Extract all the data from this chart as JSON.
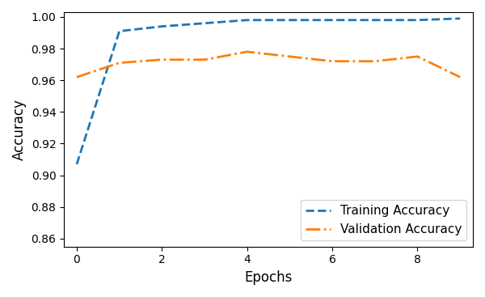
{
  "epochs": [
    0,
    1,
    2,
    3,
    4,
    5,
    6,
    7,
    8,
    9
  ],
  "train_acc": [
    0.907,
    0.991,
    0.994,
    0.996,
    0.998,
    0.998,
    0.998,
    0.998,
    0.998,
    0.999
  ],
  "val_acc": [
    0.962,
    0.971,
    0.973,
    0.973,
    0.978,
    0.975,
    0.972,
    0.972,
    0.975,
    0.962
  ],
  "train_color": "#1f77b4",
  "val_color": "#ff7f0e",
  "train_label": "Training Accuracy",
  "val_label": "Validation Accuracy",
  "xlabel": "Epochs",
  "ylabel": "Accuracy",
  "ylim": [
    0.855,
    1.003
  ],
  "xlim": [
    -0.3,
    9.3
  ],
  "yticks": [
    0.86,
    0.88,
    0.9,
    0.92,
    0.94,
    0.96,
    0.98,
    1.0
  ],
  "xticks": [
    0,
    2,
    4,
    6,
    8
  ]
}
